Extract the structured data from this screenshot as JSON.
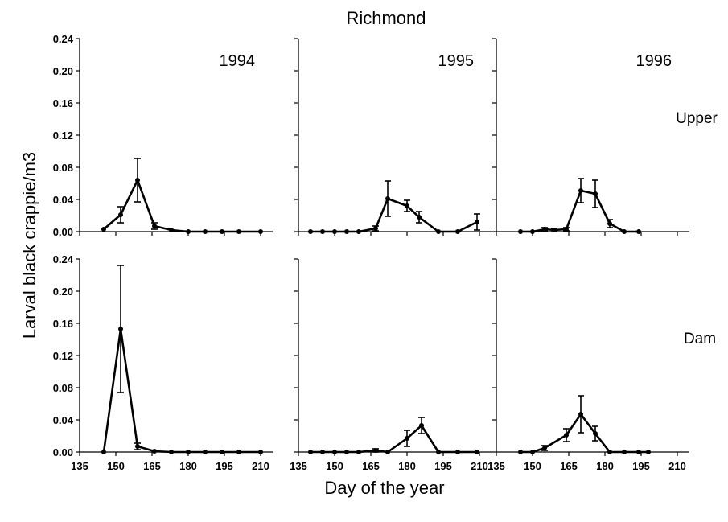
{
  "title": "Richmond",
  "ylabel": "Larval black crappie/m3",
  "xlabel": "Day of the year",
  "x_ticks": [
    "135",
    "150",
    "165",
    "180",
    "195",
    "210"
  ],
  "y_ticks": [
    "0.00",
    "0.04",
    "0.08",
    "0.12",
    "0.16",
    "0.20",
    "0.24"
  ],
  "row_labels": [
    "Upper",
    "Dam"
  ],
  "year_labels": [
    "1994",
    "1995",
    "1996"
  ],
  "chart_data": [
    {
      "type": "line",
      "title": "1994",
      "panel_row": "Upper",
      "xlim": [
        135,
        215
      ],
      "ylim": [
        0,
        0.24
      ],
      "x": [
        145,
        152,
        159,
        166,
        173,
        180,
        187,
        194,
        201,
        210
      ],
      "y": [
        0.003,
        0.021,
        0.064,
        0.007,
        0.002,
        0.0,
        0.0,
        0.0,
        0.0,
        0.0
      ],
      "error": [
        0,
        0.01,
        0.027,
        0.004,
        0,
        0,
        0,
        0,
        0,
        0
      ]
    },
    {
      "type": "line",
      "title": "1995",
      "panel_row": "Upper",
      "xlim": [
        135,
        215
      ],
      "ylim": [
        0,
        0.24
      ],
      "x": [
        140,
        145,
        150,
        155,
        160,
        167,
        172,
        180,
        185,
        193,
        201,
        209
      ],
      "y": [
        0.0,
        0.0,
        0.0,
        0.0,
        0.0,
        0.004,
        0.041,
        0.032,
        0.018,
        0.0,
        0.0,
        0.012
      ],
      "error": [
        0,
        0,
        0,
        0,
        0,
        0.003,
        0.022,
        0.007,
        0.007,
        0,
        0,
        0.01
      ]
    },
    {
      "type": "line",
      "title": "1996",
      "panel_row": "Upper",
      "xlim": [
        135,
        215
      ],
      "ylim": [
        0,
        0.24
      ],
      "x": [
        145,
        150,
        155,
        159,
        164,
        170,
        176,
        182,
        188,
        194
      ],
      "y": [
        0.0,
        0.0,
        0.003,
        0.002,
        0.003,
        0.051,
        0.047,
        0.01,
        0.0,
        0.0
      ],
      "error": [
        0,
        0,
        0.002,
        0.002,
        0.002,
        0.015,
        0.017,
        0.005,
        0,
        0
      ]
    },
    {
      "type": "line",
      "title": "",
      "panel_row": "Dam",
      "xlim": [
        135,
        215
      ],
      "ylim": [
        0,
        0.24
      ],
      "x": [
        145,
        152,
        159,
        166,
        173,
        180,
        187,
        194,
        201,
        210
      ],
      "y": [
        0.0,
        0.153,
        0.007,
        0.001,
        0.0,
        0.0,
        0.0,
        0.0,
        0.0,
        0.0
      ],
      "error": [
        0,
        0.079,
        0.004,
        0,
        0,
        0,
        0,
        0,
        0,
        0
      ]
    },
    {
      "type": "line",
      "title": "",
      "panel_row": "Dam",
      "xlim": [
        135,
        215
      ],
      "ylim": [
        0,
        0.24
      ],
      "x": [
        140,
        145,
        150,
        155,
        160,
        167,
        172,
        180,
        186,
        193,
        201,
        209
      ],
      "y": [
        0.0,
        0.0,
        0.0,
        0.0,
        0.0,
        0.002,
        0.0,
        0.017,
        0.033,
        0.0,
        0.0,
        0.0
      ],
      "error": [
        0,
        0,
        0,
        0,
        0,
        0.002,
        0,
        0.01,
        0.01,
        0,
        0,
        0
      ]
    },
    {
      "type": "line",
      "title": "",
      "panel_row": "Dam",
      "xlim": [
        135,
        215
      ],
      "ylim": [
        0,
        0.24
      ],
      "x": [
        145,
        150,
        155,
        164,
        170,
        176,
        182,
        188,
        194,
        198
      ],
      "y": [
        0.0,
        0.0,
        0.005,
        0.021,
        0.047,
        0.023,
        0.0,
        0.0,
        0.0,
        0.0
      ],
      "error": [
        0,
        0,
        0.003,
        0.008,
        0.023,
        0.009,
        0,
        0,
        0,
        0
      ]
    }
  ]
}
